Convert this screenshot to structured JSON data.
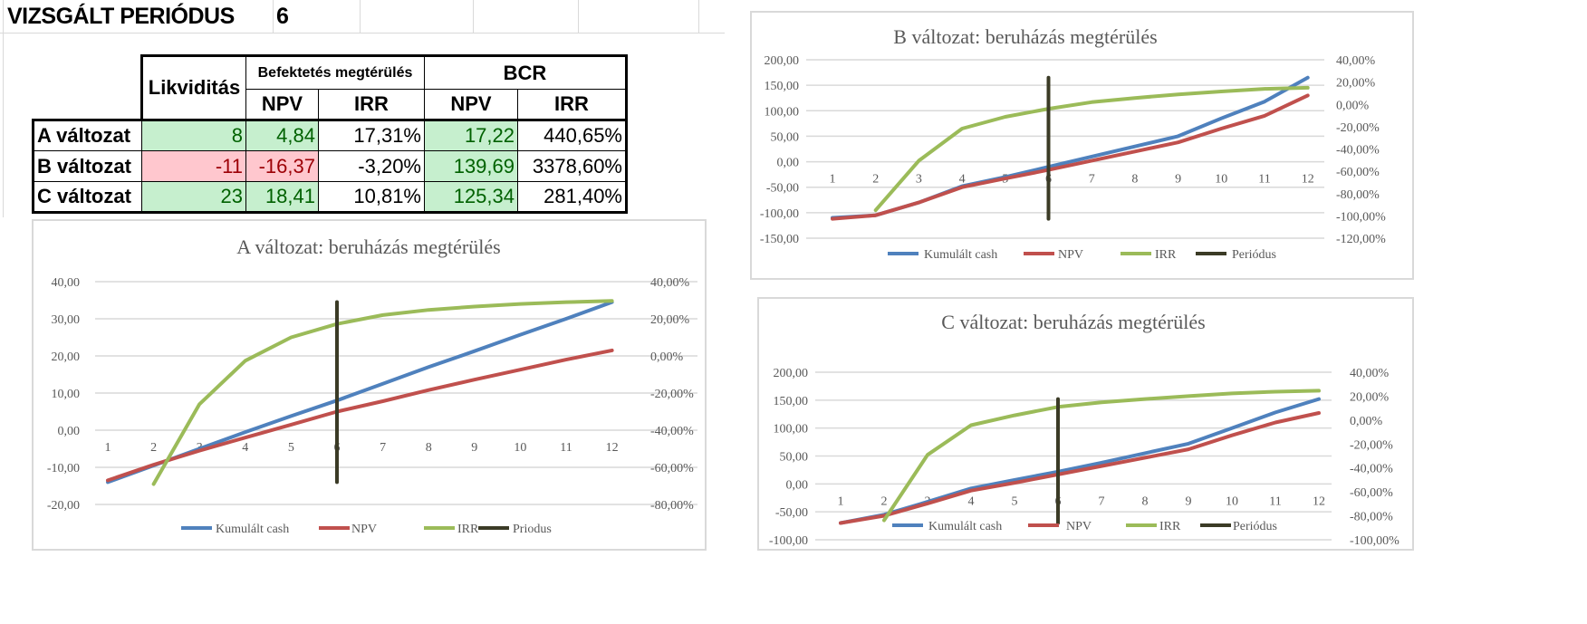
{
  "sheet": {
    "title_label": "VIZSGÁLT PERIÓDUS",
    "period_value": "6"
  },
  "table": {
    "header": {
      "likviditas": "Likviditás",
      "befektetes": "Befektetés megtérülés",
      "bcr": "BCR",
      "npv": "NPV",
      "irr": "IRR"
    },
    "rows": [
      {
        "label": "A változat",
        "likviditas": "8",
        "npv": "4,84",
        "irr": "17,31%",
        "bcr_npv": "17,22",
        "bcr_irr": "440,65%"
      },
      {
        "label": "B változat",
        "likviditas": "-11",
        "npv": "-16,37",
        "irr": "-3,20%",
        "bcr_npv": "139,69",
        "bcr_irr": "3378,60%"
      },
      {
        "label": "C változat",
        "likviditas": "23",
        "npv": "18,41",
        "irr": "10,81%",
        "bcr_npv": "125,34",
        "bcr_irr": "281,40%"
      }
    ],
    "colors": {
      "positive_fill": "#C6EFCE",
      "positive_text": "#006100",
      "negative_fill": "#FFC7CE",
      "negative_text": "#9C0006"
    }
  },
  "chart_data": [
    {
      "type": "line",
      "title": "A változat: beruházás megtérülés",
      "x": [
        1,
        2,
        3,
        4,
        5,
        6,
        7,
        8,
        9,
        10,
        11,
        12
      ],
      "left_axis": {
        "min": -20,
        "max": 40,
        "ticks": [
          "40,00",
          "30,00",
          "20,00",
          "10,00",
          "0,00",
          "-10,00",
          "-20,00"
        ]
      },
      "right_axis": {
        "min": -80,
        "max": 40,
        "unit": "%",
        "ticks": [
          "40,00%",
          "20,00%",
          "0,00%",
          "-20,00%",
          "-40,00%",
          "-60,00%",
          "-80,00%"
        ]
      },
      "series": [
        {
          "name": "Kumulált cash",
          "axis": "left",
          "color": "#4F81BD",
          "values": [
            -14,
            -9.5,
            -5,
            -0.5,
            3.8,
            8,
            12.5,
            17,
            21.3,
            25.7,
            30,
            34.5
          ]
        },
        {
          "name": "NPV",
          "axis": "left",
          "color": "#C0504D",
          "values": [
            -13.5,
            -9.3,
            -5.5,
            -2,
            1.5,
            5,
            7.8,
            10.8,
            13.6,
            16.3,
            19,
            21.5
          ]
        },
        {
          "name": "IRR",
          "axis": "right",
          "color": "#9BBB59",
          "values": [
            null,
            -69,
            -26,
            -2.6,
            10,
            17.2,
            22,
            24.8,
            26.6,
            28,
            29,
            29.6
          ]
        }
      ],
      "period_marker": {
        "name": "Priodus",
        "x": 6,
        "color": "#3B3B26"
      },
      "grid": true,
      "legend_position": "bottom"
    },
    {
      "type": "line",
      "title": "B változat: beruházás megtérülés",
      "x": [
        1,
        2,
        3,
        4,
        5,
        6,
        7,
        8,
        9,
        10,
        11,
        12
      ],
      "left_axis": {
        "min": -150,
        "max": 200,
        "ticks": [
          "200,00",
          "150,00",
          "100,00",
          "50,00",
          "0,00",
          "-50,00",
          "-100,00",
          "-150,00"
        ]
      },
      "right_axis": {
        "min": -120,
        "max": 40,
        "unit": "%",
        "ticks": [
          "40,00%",
          "20,00%",
          "0,00%",
          "-20,00%",
          "-40,00%",
          "-60,00%",
          "-80,00%",
          "-100,00%",
          "-120,00%"
        ]
      },
      "series": [
        {
          "name": "Kumulált cash",
          "axis": "left",
          "color": "#4F81BD",
          "values": [
            -110,
            -105,
            -80,
            -48,
            -30,
            -10,
            10,
            30,
            50,
            85,
            118,
            165
          ]
        },
        {
          "name": "NPV",
          "axis": "left",
          "color": "#C0504D",
          "values": [
            -112,
            -105,
            -80,
            -50,
            -33,
            -16,
            2,
            20,
            38,
            65,
            90,
            130
          ]
        },
        {
          "name": "IRR",
          "axis": "right",
          "color": "#9BBB59",
          "values": [
            null,
            -94.9,
            -50.5,
            -21.7,
            -11.2,
            -3.9,
            2,
            5.7,
            9,
            11.6,
            13.9,
            14.9
          ]
        }
      ],
      "period_marker": {
        "name": "Periódus",
        "x": 6,
        "color": "#3B3B26"
      },
      "grid": true,
      "legend_position": "bottom"
    },
    {
      "type": "line",
      "title": "C változat: beruházás megtérülés",
      "x": [
        1,
        2,
        3,
        4,
        5,
        6,
        7,
        8,
        9,
        10,
        11,
        12
      ],
      "left_axis": {
        "min": -100,
        "max": 200,
        "ticks": [
          "200,00",
          "150,00",
          "100,00",
          "50,00",
          "0,00",
          "-50,00",
          "-100,00"
        ]
      },
      "right_axis": {
        "min": -100,
        "max": 40,
        "unit": "%",
        "ticks": [
          "40,00%",
          "20,00%",
          "0,00%",
          "-20,00%",
          "-40,00%",
          "-60,00%",
          "-80,00%",
          "-100,00%"
        ]
      },
      "series": [
        {
          "name": "Kumulált cash",
          "axis": "left",
          "color": "#4F81BD",
          "values": [
            -70,
            -55,
            -32,
            -8,
            7,
            22,
            38,
            55,
            72,
            100,
            128,
            152
          ]
        },
        {
          "name": "NPV",
          "axis": "left",
          "color": "#C0504D",
          "values": [
            -70,
            -57,
            -35,
            -12,
            2,
            17,
            32,
            47,
            62,
            87,
            110,
            127
          ]
        },
        {
          "name": "IRR",
          "axis": "right",
          "color": "#9BBB59",
          "values": [
            null,
            -83.7,
            -29,
            -4.3,
            4,
            11,
            14.8,
            17.6,
            20,
            22.3,
            23.7,
            24.6
          ]
        }
      ],
      "period_marker": {
        "name": "Periódus",
        "x": 6,
        "color": "#3B3B26"
      },
      "grid": true,
      "legend_position": "bottom"
    }
  ]
}
